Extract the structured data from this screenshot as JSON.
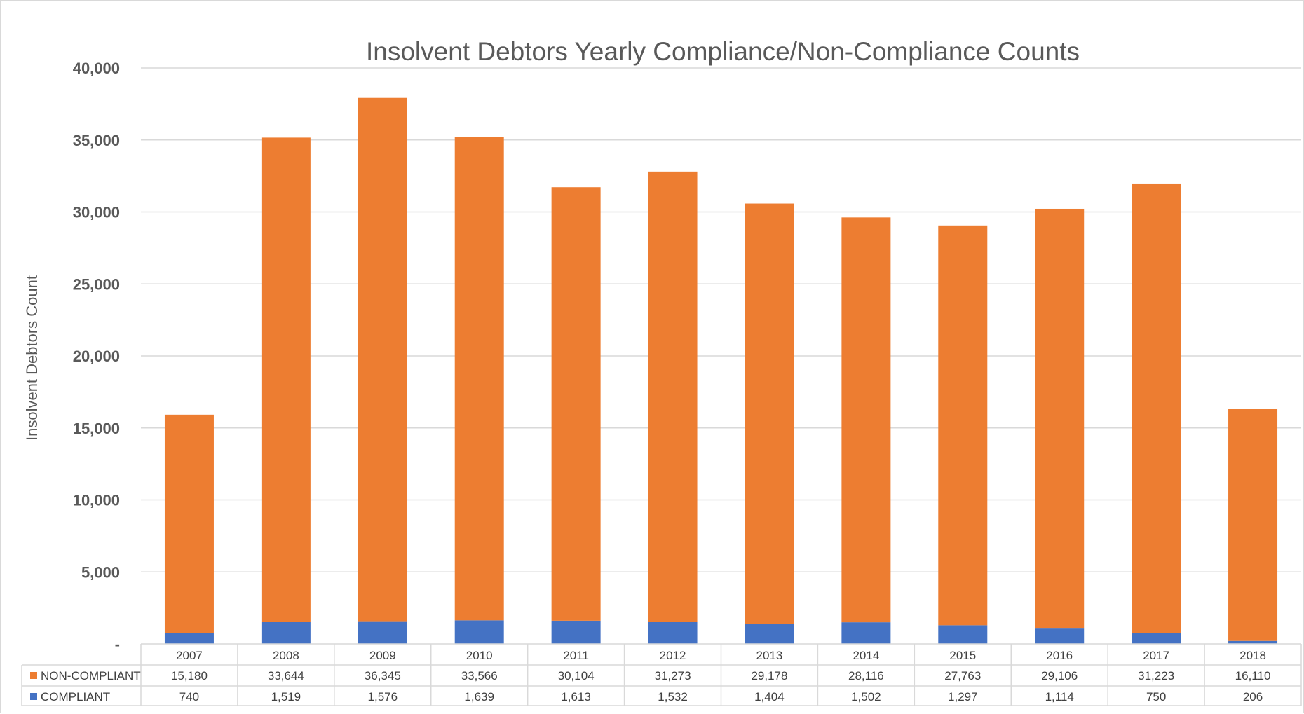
{
  "chart_data": {
    "type": "bar",
    "stacked": true,
    "title": "Insolvent  Debtors Yearly  Compliance/Non-Compliance Counts",
    "ylabel": "Insolvent Debtors Count",
    "xlabel": "",
    "ylim": [
      0,
      40000
    ],
    "yticks": [
      "-",
      "5,000",
      "10,000",
      "15,000",
      "20,000",
      "25,000",
      "30,000",
      "35,000",
      "40,000"
    ],
    "grid": true,
    "legend_placement": "data-table",
    "categories": [
      "2007",
      "2008",
      "2009",
      "2010",
      "2011",
      "2012",
      "2013",
      "2014",
      "2015",
      "2016",
      "2017",
      "2018"
    ],
    "series": [
      {
        "name": "COMPLIANT",
        "color": "#4472c4",
        "values": [
          740,
          1519,
          1576,
          1639,
          1613,
          1532,
          1404,
          1502,
          1297,
          1114,
          750,
          206
        ],
        "labels": [
          "740",
          "1,519",
          "1,576",
          "1,639",
          "1,613",
          "1,532",
          "1,404",
          "1,502",
          "1,297",
          "1,114",
          "750",
          "206"
        ]
      },
      {
        "name": "NON-COMPLIANT",
        "color": "#ed7d31",
        "values": [
          15180,
          33644,
          36345,
          33566,
          30104,
          31273,
          29178,
          28116,
          27763,
          29106,
          31223,
          16110
        ],
        "labels": [
          "15,180",
          "33,644",
          "36,345",
          "33,566",
          "30,104",
          "31,273",
          "29,178",
          "28,116",
          "27,763",
          "29,106",
          "31,223",
          "16,110"
        ]
      }
    ],
    "table_row_order": [
      "NON-COMPLIANT",
      "COMPLIANT"
    ]
  }
}
